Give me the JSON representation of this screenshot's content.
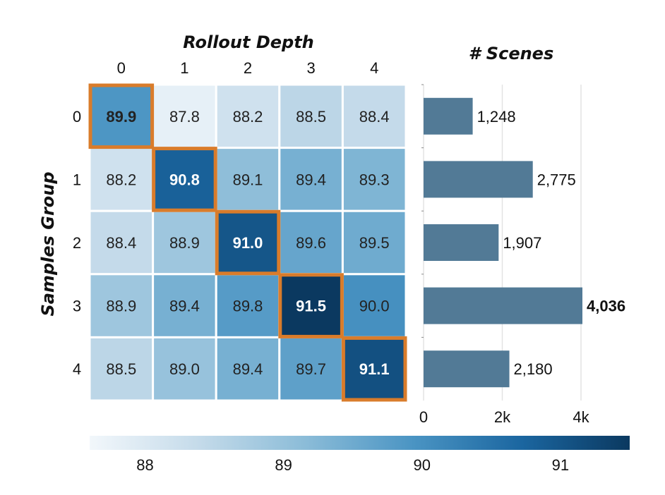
{
  "chart_data": [
    {
      "type": "heatmap",
      "title": "Rollout Depth",
      "xlabel": "Rollout Depth",
      "ylabel": "Samples Group",
      "x_categories": [
        "0",
        "1",
        "2",
        "3",
        "4"
      ],
      "y_categories": [
        "0",
        "1",
        "2",
        "3",
        "4"
      ],
      "values": [
        [
          89.9,
          87.8,
          88.2,
          88.5,
          88.4
        ],
        [
          88.2,
          90.8,
          89.1,
          89.4,
          89.3
        ],
        [
          88.4,
          88.9,
          91.0,
          89.6,
          89.5
        ],
        [
          88.9,
          89.4,
          89.8,
          91.5,
          90.0
        ],
        [
          88.5,
          89.0,
          89.4,
          89.7,
          91.1
        ]
      ],
      "labels": [
        [
          "89.9",
          "87.8",
          "88.2",
          "88.5",
          "88.4"
        ],
        [
          "88.2",
          "90.8",
          "89.1",
          "89.4",
          "89.3"
        ],
        [
          "88.4",
          "88.9",
          "91.0",
          "89.6",
          "89.5"
        ],
        [
          "88.9",
          "89.4",
          "89.8",
          "91.5",
          "90.0"
        ],
        [
          "88.5",
          "89.0",
          "89.4",
          "89.7",
          "91.1"
        ]
      ],
      "highlighted_cells": [
        [
          0,
          0
        ],
        [
          1,
          1
        ],
        [
          2,
          2
        ],
        [
          3,
          3
        ],
        [
          4,
          4
        ]
      ],
      "highlight_color": "#d97c2b",
      "colorbar": {
        "range": [
          87.6,
          91.5
        ],
        "ticks": [
          88,
          89,
          90,
          91
        ],
        "tick_labels": [
          "88",
          "89",
          "90",
          "91"
        ],
        "colors": [
          "#f2f7fb",
          "#c5dbea",
          "#8bbcd8",
          "#4a94c3",
          "#1b66a0",
          "#0b3960"
        ]
      }
    },
    {
      "type": "bar",
      "orientation": "horizontal",
      "title": "# Scenes",
      "categories": [
        "0",
        "1",
        "2",
        "3",
        "4"
      ],
      "values": [
        1248,
        2775,
        1907,
        4036,
        2180
      ],
      "value_labels": [
        "1,248",
        "2,775",
        "1,907",
        "4,036",
        "2,180"
      ],
      "bold_label_index": 3,
      "xlim": [
        0,
        4500
      ],
      "x_ticks": [
        0,
        2000,
        4000
      ],
      "x_tick_labels": [
        "0",
        "2k",
        "4k"
      ],
      "grid": true,
      "bar_color": "#527a96"
    }
  ]
}
